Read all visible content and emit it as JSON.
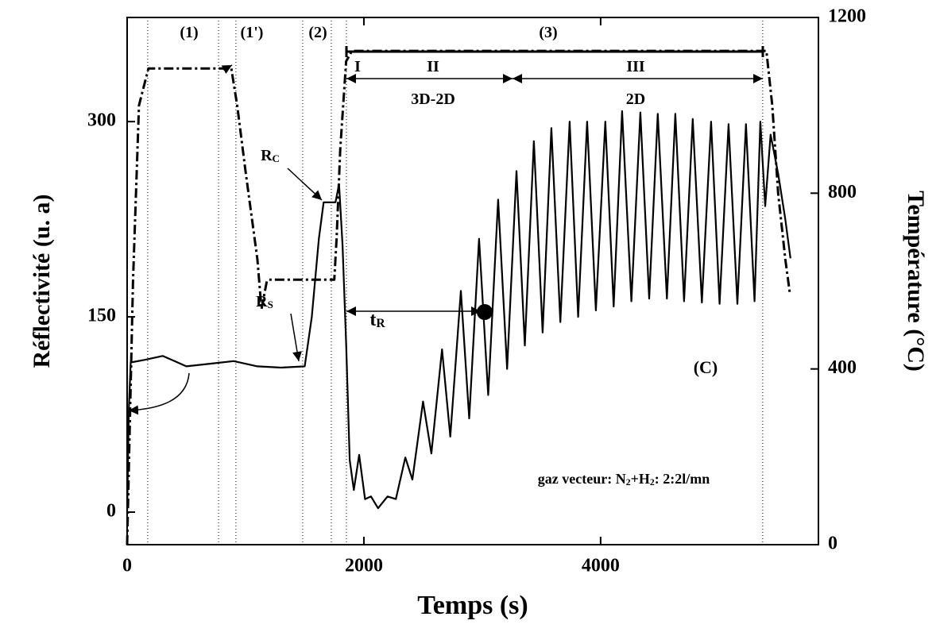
{
  "chart_data": {
    "type": "line",
    "xlabel": "Temps (s)",
    "ylabel": "Réflectivité (u. a)",
    "y2label": "Température (°C)",
    "xlim": [
      0,
      5840
    ],
    "ylim": [
      -25,
      380
    ],
    "y2lim": [
      0,
      1200
    ],
    "xticks": [
      0,
      2000,
      4000
    ],
    "yticks": [
      0,
      150,
      300
    ],
    "y2ticks": [
      0,
      400,
      800,
      1200
    ],
    "vlines": [
      174,
      772,
      919,
      1483,
      1725,
      1852,
      5369
    ],
    "series": [
      {
        "name": "Réflectivité",
        "color": "#000000",
        "style": "solid",
        "x": [
          0,
          15,
          30,
          150,
          300,
          400,
          500,
          700,
          900,
          1100,
          1300,
          1500,
          1560,
          1620,
          1660,
          1760,
          1790,
          1820,
          1850,
          1880,
          1915,
          1960,
          2010,
          2060,
          2120,
          2200,
          2270,
          2350,
          2410,
          2500,
          2570,
          2660,
          2730,
          2819,
          2890,
          2973,
          3050,
          3134,
          3210,
          3289,
          3360,
          3436,
          3510,
          3584,
          3660,
          3738,
          3810,
          3886,
          3960,
          4040,
          4110,
          4181,
          4260,
          4336,
          4410,
          4483,
          4560,
          4631,
          4705,
          4778,
          4855,
          4933,
          5005,
          5081,
          5155,
          5228,
          5300,
          5349,
          5390,
          5436,
          5500,
          5560,
          5604
        ],
        "values": [
          0,
          80,
          115,
          117,
          120,
          116,
          112,
          114,
          116,
          112,
          111,
          112,
          150,
          210,
          238,
          238,
          252,
          205,
          130,
          40,
          17,
          44,
          10,
          12,
          3,
          12,
          10,
          42,
          25,
          85,
          45,
          125,
          58,
          170,
          72,
          210,
          90,
          240,
          110,
          262,
          128,
          285,
          138,
          295,
          146,
          300,
          150,
          300,
          155,
          300,
          158,
          308,
          162,
          307,
          164,
          306,
          164,
          306,
          162,
          302,
          161,
          300,
          160,
          298,
          160,
          298,
          162,
          300,
          235,
          290,
          260,
          225,
          195
        ]
      },
      {
        "name": "Température",
        "color": "#000000",
        "style": "dashdot",
        "axis": "y2",
        "x": [
          0,
          50,
          100,
          180,
          880,
          930,
          1000,
          1100,
          1135,
          1180,
          1200,
          1750,
          1770,
          1800,
          1850,
          1900,
          5400,
          5450,
          5500,
          5560,
          5600
        ],
        "values": [
          0,
          600,
          1000,
          1084,
          1084,
          1000,
          850,
          650,
          536,
          600,
          603,
          603,
          700,
          900,
          1100,
          1124,
          1124,
          1000,
          800,
          650,
          570
        ]
      }
    ],
    "annotations": [
      {
        "parts": [
          {
            "text": "(1)"
          }
        ]
      },
      {
        "parts": [
          {
            "text": "(1')"
          }
        ]
      },
      {
        "parts": [
          {
            "text": "(2)"
          }
        ]
      },
      {
        "parts": [
          {
            "text": "(3)"
          }
        ]
      },
      {
        "parts": [
          {
            "text": "I"
          }
        ]
      },
      {
        "parts": [
          {
            "text": "II"
          }
        ]
      },
      {
        "parts": [
          {
            "text": "III"
          }
        ]
      },
      {
        "parts": [
          {
            "text": "3D-2D"
          }
        ]
      },
      {
        "parts": [
          {
            "text": "2D"
          }
        ]
      },
      {
        "parts": [
          {
            "text": "R"
          },
          {
            "text": "C",
            "sub": true
          }
        ]
      },
      {
        "parts": [
          {
            "text": "R"
          },
          {
            "text": "S",
            "sub": true
          }
        ]
      },
      {
        "parts": [
          {
            "text": "t"
          },
          {
            "text": "R",
            "sub": true
          }
        ]
      },
      {
        "parts": [
          {
            "text": "(C)"
          }
        ]
      },
      {
        "parts": [
          {
            "text": "gaz vecteur: N"
          },
          {
            "text": "2",
            "sub": true
          },
          {
            "text": "+H"
          },
          {
            "text": "2",
            "sub": true
          },
          {
            "text": ": 2:2l/mn"
          }
        ]
      }
    ]
  }
}
